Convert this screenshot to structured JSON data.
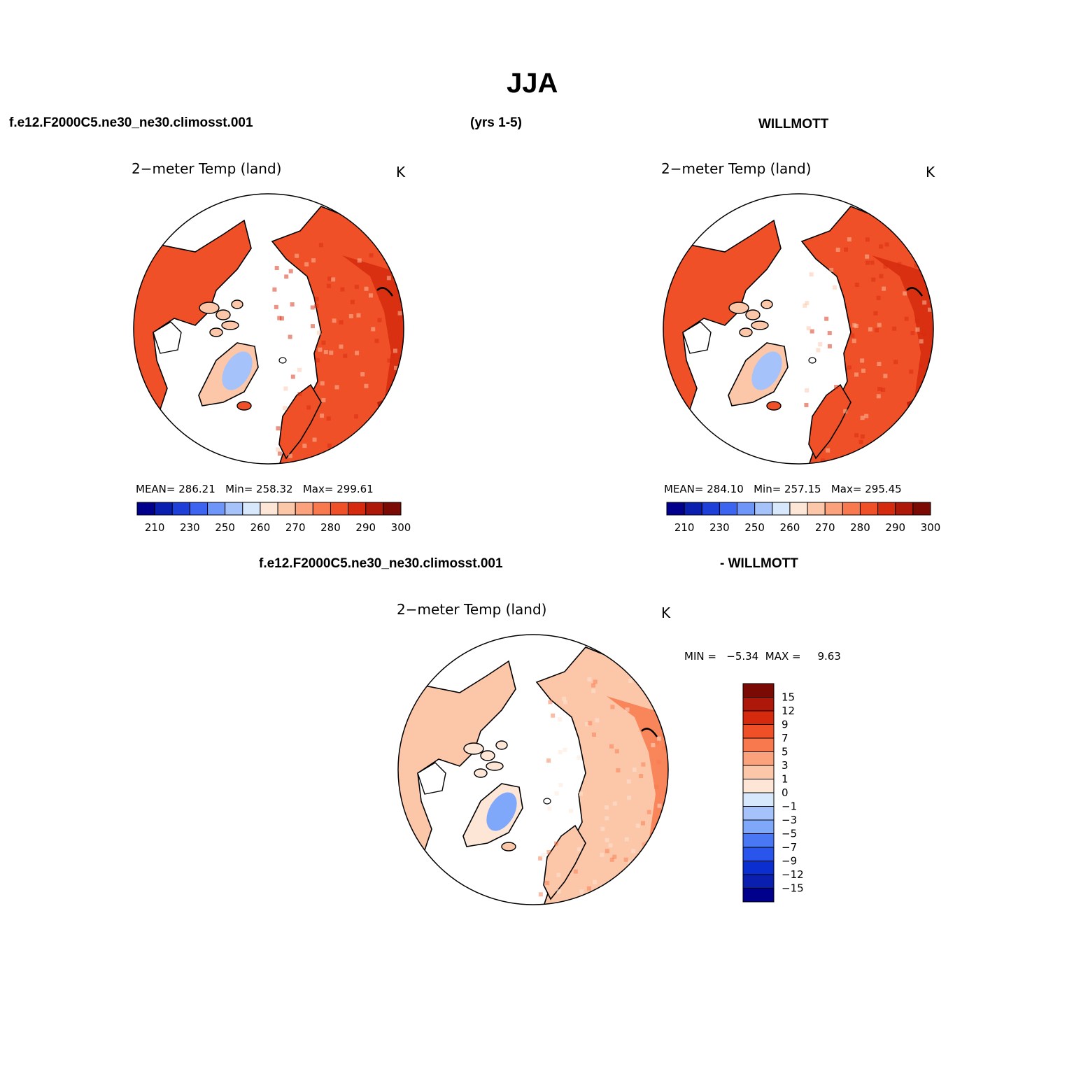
{
  "header": {
    "title": "JJA",
    "left": "f.e12.F2000C5.ne30_ne30.climosst.001",
    "center": "(yrs 1-5)",
    "right": "WILLMOTT",
    "diff_left": "f.e12.F2000C5.ne30_ne30.climosst.001",
    "diff_right": "- WILLMOTT"
  },
  "panels": [
    {
      "name": "model",
      "title": "2−meter Temp (land)",
      "units": "K",
      "mean_label": "MEAN=",
      "mean": "286.21",
      "min_label": "Min=",
      "min": "258.32",
      "max_label": "Max=",
      "max": "299.61"
    },
    {
      "name": "obs",
      "title": "2−meter Temp (land)",
      "units": "K",
      "mean_label": "MEAN=",
      "mean": "284.10",
      "min_label": "Min=",
      "min": "257.15",
      "max_label": "Max=",
      "max": "295.45"
    },
    {
      "name": "diff",
      "title": "2−meter Temp (land)",
      "units": "K",
      "min_label": "MIN =",
      "min": "−5.34",
      "max_label": "MAX =",
      "max": "9.63"
    }
  ],
  "colorbar_abs": {
    "colors": [
      "#00008c",
      "#0a1fb0",
      "#1e40d8",
      "#3c64f0",
      "#6e96f8",
      "#a5c3fa",
      "#d8e8fc",
      "#fde6d6",
      "#fcc6a8",
      "#fba27c",
      "#f8794e",
      "#f05028",
      "#d62a0e",
      "#ad1808",
      "#7c0a04"
    ],
    "tick_labels": [
      "210",
      "230",
      "250",
      "260",
      "270",
      "280",
      "290",
      "300"
    ]
  },
  "colorbar_diff": {
    "colors": [
      "#7c0a04",
      "#ad1808",
      "#d62a0e",
      "#f05028",
      "#f8794e",
      "#fba27c",
      "#fcc6a8",
      "#fde6d6",
      "#d8e8fc",
      "#a5c3fa",
      "#80a8fa",
      "#4a78f4",
      "#2a55ec",
      "#0a2ed0",
      "#0a1fb0",
      "#00008c"
    ],
    "tick_labels": [
      "15",
      "12",
      "9",
      "7",
      "5",
      "3",
      "1",
      "0",
      "−1",
      "−3",
      "−5",
      "−7",
      "−9",
      "−12",
      "−15"
    ]
  },
  "map_colors": {
    "model": {
      "base": "#f05028",
      "warm": "#d62a0e",
      "hot": "#ad1808",
      "cool": "#fcc6a8",
      "ice": "#a5c3fa"
    },
    "obs": {
      "base": "#f05028",
      "warm": "#d62a0e",
      "hot": "#ad1808",
      "cool": "#fcc6a8",
      "ice": "#a5c3fa"
    },
    "diff": {
      "base": "#fcc6a8",
      "warm": "#f8794e",
      "hot": "#fba27c",
      "cool": "#fde6d6",
      "ice": "#80a8fa"
    }
  }
}
